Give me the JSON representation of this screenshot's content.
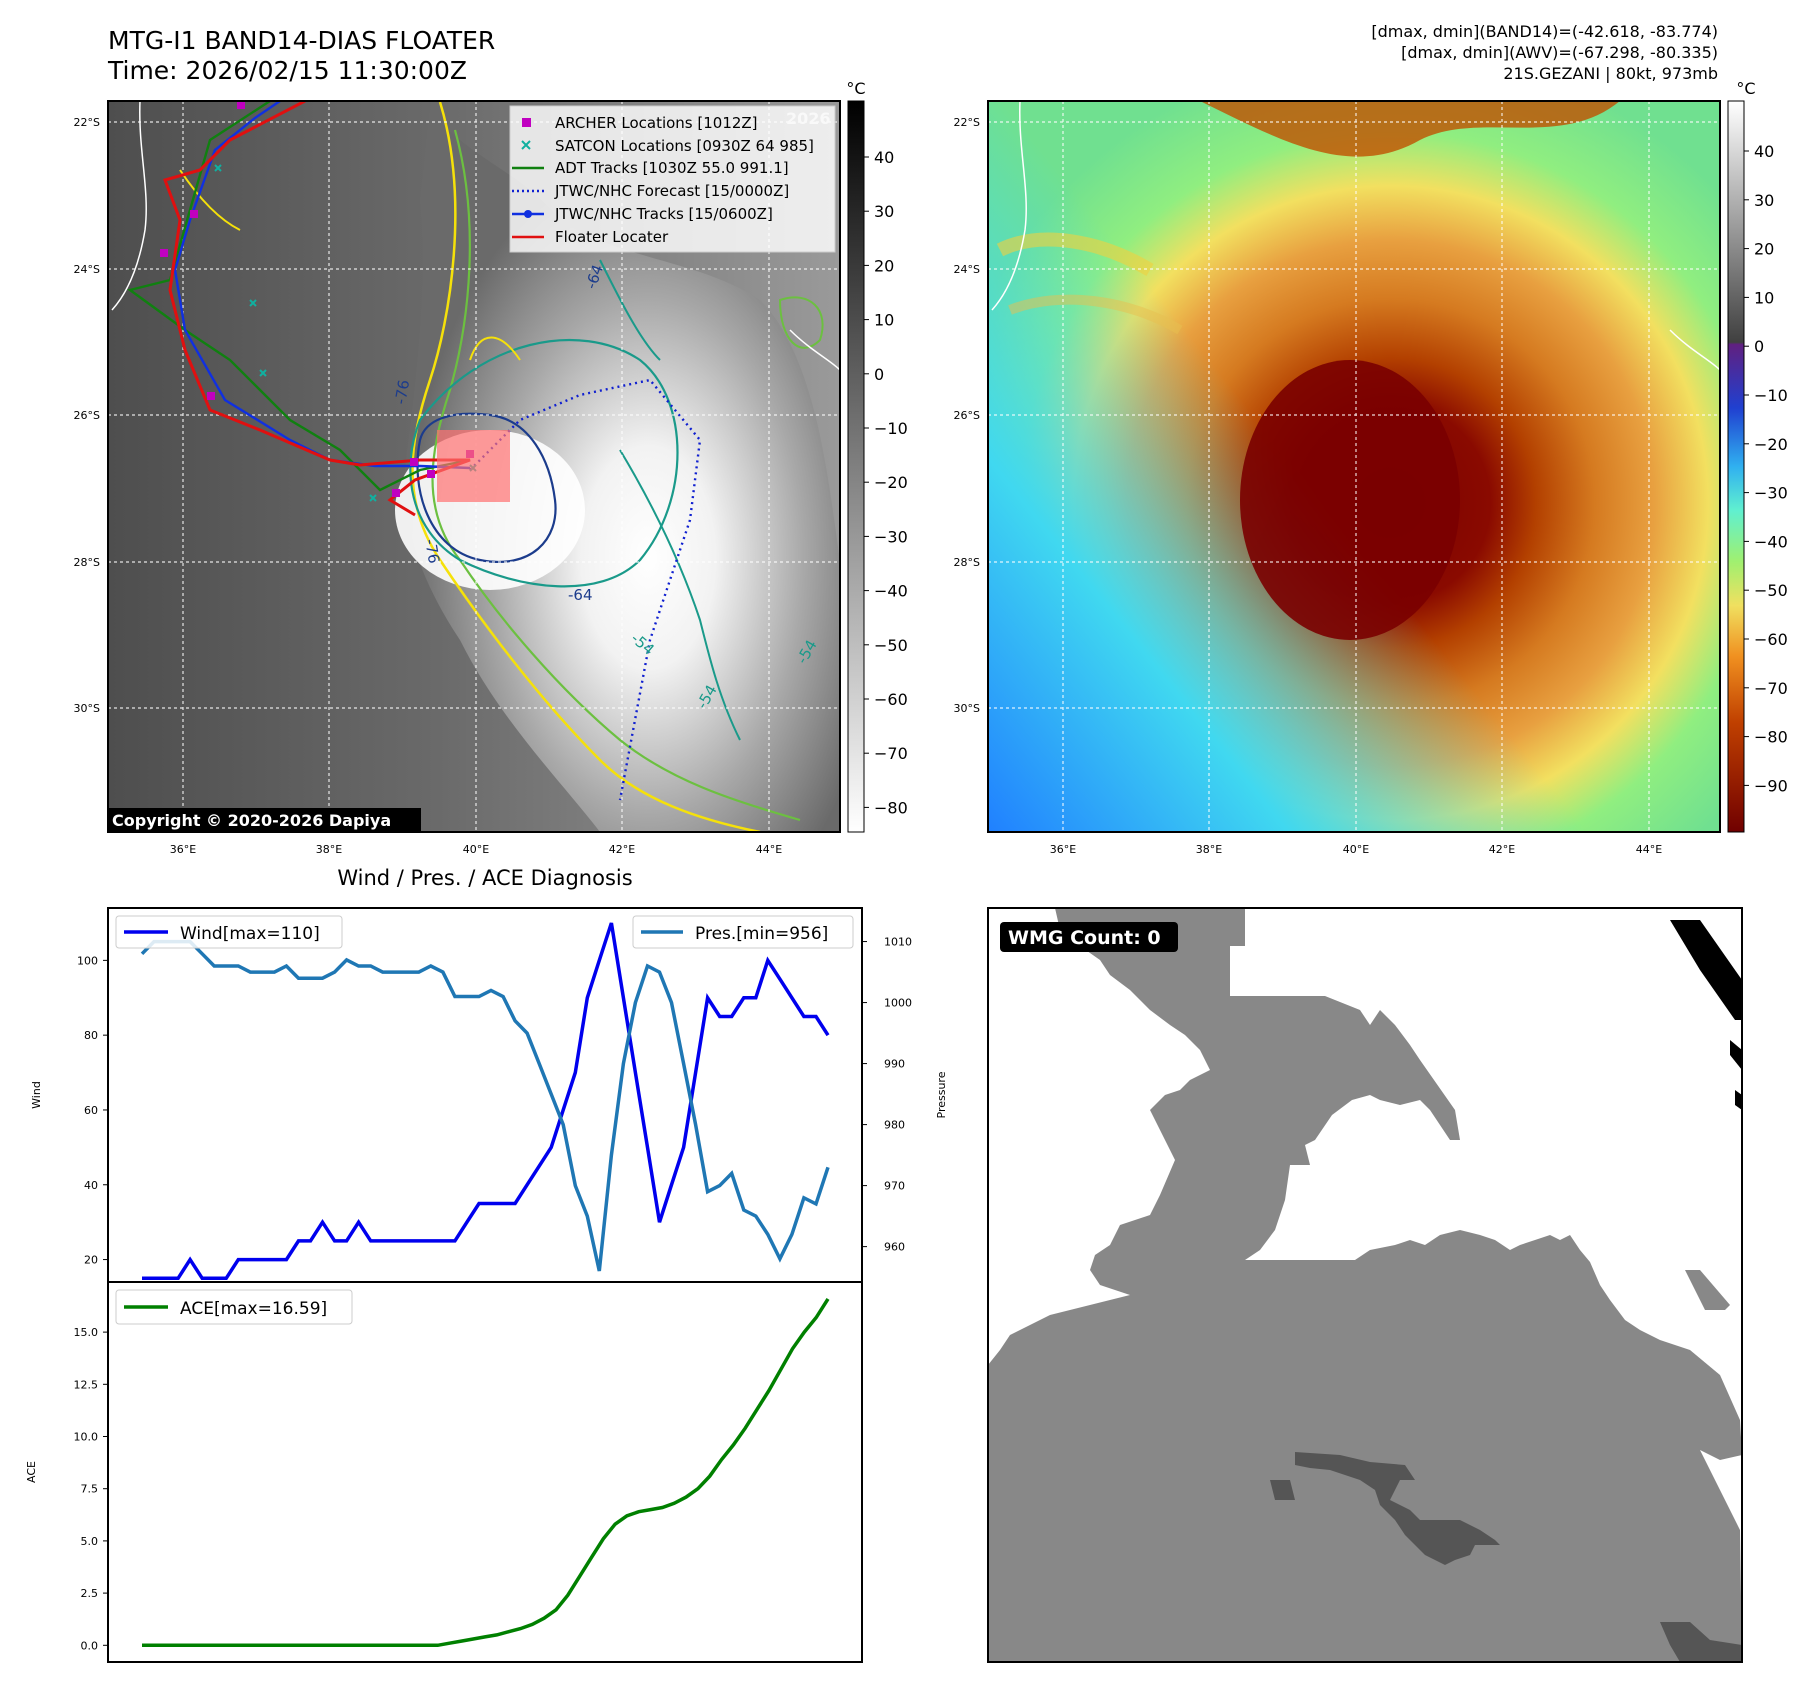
{
  "header": {
    "title": "MTG-I1 BAND14-DIAS FLOATER",
    "time": "Time: 2026/02/15 11:30:00Z",
    "stats_band14": "[dmax, dmin](BAND14)=(-42.618, -83.774)",
    "stats_awv": "[dmax, dmin](AWV)=(-67.298, -80.335)",
    "storm_info": "21S.GEZANI | 80kt, 973mb"
  },
  "map_axes": {
    "lat_labels": [
      "22°S",
      "24°S",
      "26°S",
      "28°S",
      "30°S"
    ],
    "lon_labels": [
      "36°E",
      "38°E",
      "40°E",
      "42°E",
      "44°E"
    ]
  },
  "ir_panel": {
    "copyright": "Copyright © 2020-2026 Dapiya",
    "faded_text": "2026",
    "contour_labels": [
      "-76",
      "-64",
      "-54",
      "-64",
      "-76",
      "-54",
      "-54"
    ],
    "legend": [
      {
        "label": "ARCHER Locations [1012Z]",
        "color": "#c000c0"
      },
      {
        "label": "SATCON Locations [0930Z 64 985]",
        "color": "#10b0a0"
      },
      {
        "label": "ADT Tracks [1030Z 55.0 991.1]",
        "color": "#108010"
      },
      {
        "label": "JTWC/NHC Forecast [15/0000Z]",
        "color": "#1020d0"
      },
      {
        "label": "JTWC/NHC Tracks [15/0600Z]",
        "color": "#1030e0"
      },
      {
        "label": "Floater Locater",
        "color": "#e01010"
      }
    ],
    "colorbar_unit": "°C",
    "colorbar_ticks": [
      "40",
      "30",
      "20",
      "10",
      "0",
      "−10",
      "−20",
      "−30",
      "−40",
      "−50",
      "−60",
      "−70",
      "−80"
    ]
  },
  "awv_panel": {
    "colorbar_unit": "°C",
    "colorbar_ticks": [
      "40",
      "30",
      "20",
      "10",
      "0",
      "−10",
      "−20",
      "−30",
      "−40",
      "−50",
      "−60",
      "−70",
      "−80",
      "−90"
    ]
  },
  "wmg_panel": {
    "label": "WMG Count: 0"
  },
  "chart_data": [
    {
      "type": "line",
      "title": "Wind / Pres. / ACE Diagnosis",
      "ylabel": "Wind",
      "ylabel_right": "Pressure",
      "ylim": [
        14,
        114
      ],
      "ylim_right": [
        954.2,
        1015.5
      ],
      "y_ticks": [
        20,
        40,
        60,
        80,
        100
      ],
      "y_ticks_right": [
        960,
        970,
        980,
        990,
        1000,
        1010
      ],
      "series": [
        {
          "name": "Wind[max=110]",
          "color": "#0000ee",
          "values": [
            15,
            15,
            15,
            15,
            20,
            15,
            15,
            15,
            20,
            20,
            20,
            20,
            20,
            25,
            25,
            30,
            25,
            25,
            30,
            25,
            25,
            25,
            25,
            25,
            25,
            25,
            25,
            30,
            35,
            35,
            35,
            35,
            40,
            45,
            50,
            60,
            70,
            90,
            100,
            110,
            90,
            70,
            50,
            30,
            40,
            50,
            70,
            90,
            85,
            85,
            90,
            90,
            100,
            95,
            90,
            85,
            85,
            80
          ]
        },
        {
          "name": "Pres.[min=956]",
          "color": "#1f77b4",
          "values": [
            1008,
            1010,
            1010,
            1010,
            1010,
            1008,
            1006,
            1006,
            1006,
            1005,
            1005,
            1005,
            1006,
            1004,
            1004,
            1004,
            1005,
            1007,
            1006,
            1006,
            1005,
            1005,
            1005,
            1005,
            1006,
            1005,
            1001,
            1001,
            1001,
            1002,
            1001,
            997,
            995,
            990,
            985,
            980,
            970,
            965,
            956,
            975,
            990,
            1000,
            1006,
            1005,
            1000,
            990,
            980,
            969,
            970,
            972,
            966,
            965,
            962,
            958,
            962,
            968,
            967,
            973
          ]
        }
      ]
    },
    {
      "type": "line",
      "ylabel": "ACE",
      "ylim": [
        -0.8,
        17.4
      ],
      "y_ticks": [
        0.0,
        2.5,
        5.0,
        7.5,
        10.0,
        12.5,
        15.0
      ],
      "series": [
        {
          "name": "ACE[max=16.59]",
          "color": "#008000",
          "values": [
            0,
            0,
            0,
            0,
            0,
            0,
            0,
            0,
            0,
            0,
            0,
            0,
            0,
            0,
            0,
            0,
            0,
            0,
            0,
            0,
            0,
            0,
            0,
            0,
            0,
            0,
            0.1,
            0.2,
            0.3,
            0.4,
            0.5,
            0.65,
            0.8,
            1.0,
            1.3,
            1.7,
            2.4,
            3.3,
            4.2,
            5.1,
            5.8,
            6.2,
            6.4,
            6.5,
            6.6,
            6.8,
            7.1,
            7.5,
            8.1,
            8.9,
            9.6,
            10.4,
            11.3,
            12.2,
            13.2,
            14.2,
            15.0,
            15.7,
            16.59
          ]
        }
      ]
    }
  ]
}
